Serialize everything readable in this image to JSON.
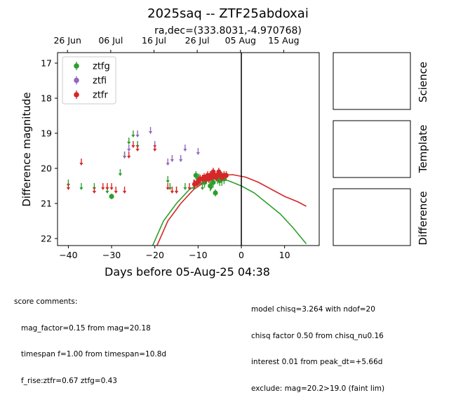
{
  "figure": {
    "title": "2025saq -- ZTF25abdoxai",
    "subtitle": "ra,dec=(333.8031,-4.970768)",
    "side_panels": [
      "Science",
      "Template",
      "Difference"
    ]
  },
  "comments": {
    "left": [
      "score comments:",
      "   mag_factor=0.15 from mag=20.18",
      "   timespan f=1.00 from timespan=10.8d",
      "   f_rise:ztfr=0.67 ztfg=0.43"
    ],
    "right": [
      "model chisq=3.264 with ndof=20",
      "chisq factor 0.50 from chisq_nu0.16",
      "interest 0.01 from peak_dt=+5.66d",
      "exclude: mag=20.2>19.0 (faint lim)"
    ]
  },
  "chart_data": {
    "type": "scatter",
    "xlabel": "Days before 05-Aug-25 04:38",
    "ylabel": "Difference magnitude",
    "xlim": [
      -42.5,
      18
    ],
    "ylim": [
      22.2,
      16.7
    ],
    "xticks": [
      -40,
      -30,
      -20,
      -10,
      0,
      10
    ],
    "yticks": [
      17,
      18,
      19,
      20,
      21,
      22
    ],
    "top_axis_ticks": [
      {
        "label": "26 Jun",
        "x": -40.2
      },
      {
        "label": "06 Jul",
        "x": -30.2
      },
      {
        "label": "16 Jul",
        "x": -20.2
      },
      {
        "label": "26 Jul",
        "x": -10.2
      },
      {
        "label": "05 Aug",
        "x": -0.2
      },
      {
        "label": "15 Aug",
        "x": 9.8
      }
    ],
    "vline_x": 0,
    "legend": [
      {
        "name": "ztfg",
        "color": "#2ca02c"
      },
      {
        "name": "ztfi",
        "color": "#9467bd"
      },
      {
        "name": "ztfr",
        "color": "#d62728"
      }
    ],
    "upper_limits": [
      {
        "band": "ztfg",
        "points": [
          [
            -40,
            20.4
          ],
          [
            -37,
            20.5
          ],
          [
            -34,
            20.5
          ],
          [
            -31,
            20.6
          ],
          [
            -28,
            20.1
          ],
          [
            -27,
            19.6
          ],
          [
            -26,
            19.2
          ],
          [
            -25,
            19.0
          ],
          [
            -24,
            19.3
          ],
          [
            -17,
            20.3
          ],
          [
            -16.5,
            20.5
          ],
          [
            -15,
            20.6
          ],
          [
            -13,
            20.5
          ],
          [
            -11,
            20.5
          ],
          [
            -9,
            20.5
          ],
          [
            -7,
            20.5
          ]
        ]
      },
      {
        "band": "ztfi",
        "points": [
          [
            -27,
            19.6
          ],
          [
            -26,
            19.4
          ],
          [
            -24,
            19.0
          ],
          [
            -21,
            18.9
          ],
          [
            -20,
            19.3
          ],
          [
            -17,
            19.8
          ],
          [
            -16,
            19.7
          ],
          [
            -14,
            19.7
          ],
          [
            -13,
            19.4
          ],
          [
            -10,
            19.5
          ]
        ]
      },
      {
        "band": "ztfr",
        "points": [
          [
            -40,
            20.5
          ],
          [
            -37,
            19.8
          ],
          [
            -34,
            20.6
          ],
          [
            -32,
            20.5
          ],
          [
            -31,
            20.5
          ],
          [
            -30,
            20.5
          ],
          [
            -29,
            20.6
          ],
          [
            -27,
            20.6
          ],
          [
            -26,
            19.6
          ],
          [
            -25,
            19.3
          ],
          [
            -24,
            19.4
          ],
          [
            -20,
            19.4
          ],
          [
            -17,
            20.5
          ],
          [
            -16,
            20.6
          ],
          [
            -15,
            20.6
          ],
          [
            -12,
            20.5
          ],
          [
            -11,
            20.4
          ]
        ]
      }
    ],
    "detections": [
      {
        "band": "ztfg",
        "points": [
          [
            -30,
            20.8,
            0.08
          ],
          [
            -10.5,
            20.2,
            0.12
          ],
          [
            -9.8,
            20.3,
            0.15
          ],
          [
            -8.5,
            20.4,
            0.15
          ],
          [
            -7.2,
            20.5,
            0.15
          ],
          [
            -6.5,
            20.4,
            0.15
          ],
          [
            -6,
            20.7,
            0.1
          ],
          [
            -5.5,
            20.3,
            0.15
          ],
          [
            -5,
            20.35,
            0.15
          ],
          [
            -4.5,
            20.3,
            0.2
          ],
          [
            -4,
            20.3,
            0.15
          ]
        ]
      },
      {
        "band": "ztfr",
        "points": [
          [
            -10.8,
            20.45,
            0.12
          ],
          [
            -10.2,
            20.4,
            0.12
          ],
          [
            -9.8,
            20.35,
            0.12
          ],
          [
            -9.5,
            20.3,
            0.12
          ],
          [
            -9,
            20.3,
            0.12
          ],
          [
            -8.6,
            20.25,
            0.12
          ],
          [
            -8.2,
            20.3,
            0.12
          ],
          [
            -7.8,
            20.2,
            0.12
          ],
          [
            -7.5,
            20.3,
            0.12
          ],
          [
            -7.2,
            20.2,
            0.12
          ],
          [
            -6.8,
            20.25,
            0.12
          ],
          [
            -6.5,
            20.1,
            0.12
          ],
          [
            -6.2,
            20.2,
            0.12
          ],
          [
            -5.8,
            20.25,
            0.12
          ],
          [
            -5.5,
            20.2,
            0.12
          ],
          [
            -5.2,
            20.1,
            0.12
          ],
          [
            -4.8,
            20.2,
            0.12
          ],
          [
            -4.5,
            20.25,
            0.12
          ],
          [
            -4,
            20.2,
            0.12
          ],
          [
            -3.5,
            20.2,
            0.12
          ]
        ]
      }
    ],
    "model_curves": [
      {
        "band": "ztfg",
        "points": [
          [
            -20.5,
            22.2
          ],
          [
            -18,
            21.5
          ],
          [
            -15,
            21.0
          ],
          [
            -12,
            20.6
          ],
          [
            -9,
            20.4
          ],
          [
            -6,
            20.3
          ],
          [
            -3,
            20.35
          ],
          [
            0,
            20.5
          ],
          [
            3,
            20.7
          ],
          [
            6,
            21.0
          ],
          [
            9,
            21.3
          ],
          [
            12,
            21.7
          ],
          [
            15,
            22.15
          ]
        ]
      },
      {
        "band": "ztfr",
        "points": [
          [
            -19.5,
            22.2
          ],
          [
            -17,
            21.5
          ],
          [
            -14,
            21.0
          ],
          [
            -11,
            20.6
          ],
          [
            -8,
            20.35
          ],
          [
            -5,
            20.2
          ],
          [
            -2,
            20.18
          ],
          [
            1,
            20.25
          ],
          [
            4,
            20.4
          ],
          [
            7,
            20.6
          ],
          [
            10,
            20.8
          ],
          [
            13,
            20.95
          ],
          [
            15,
            21.08
          ]
        ]
      }
    ]
  }
}
